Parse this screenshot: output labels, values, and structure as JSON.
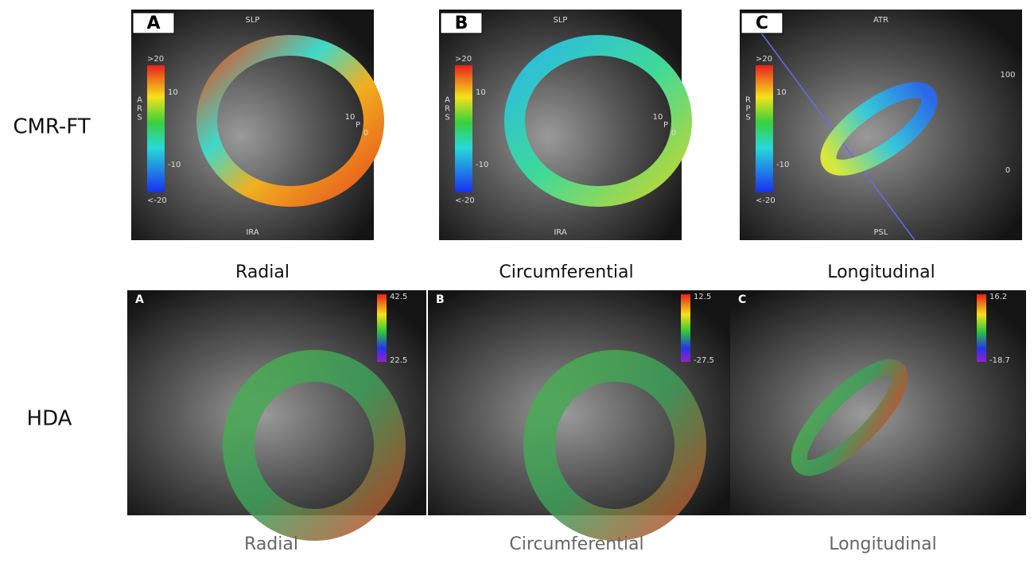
{
  "row_labels": [
    "CMR-FT",
    "HDA"
  ],
  "cmr_panels": [
    {
      "letter": "A",
      "top": "SLP",
      "bottom": "IRA",
      "scale_title": "ARS",
      "scale": [
        ">20",
        "10",
        "-10",
        "<-20"
      ],
      "side": [
        "10",
        "P",
        "0"
      ],
      "caption": "Radial"
    },
    {
      "letter": "B",
      "top": "SLP",
      "bottom": "IRA",
      "scale_title": "ARS",
      "scale": [
        ">20",
        "10",
        "-10",
        "<-20"
      ],
      "side": [
        "10",
        "P",
        "0"
      ],
      "caption": "Circumferential"
    },
    {
      "letter": "C",
      "top": "ATR",
      "bottom": "PSL",
      "scale_title": "RPS",
      "scale": [
        ">20",
        "10",
        "-10",
        "<-20"
      ],
      "side": [
        "100",
        "0"
      ],
      "caption": "Longitudinal"
    }
  ],
  "hda_panels": [
    {
      "letter": "A",
      "scale_max": "42.5",
      "scale_min": "22.5",
      "caption": "Radial"
    },
    {
      "letter": "B",
      "scale_max": "12.5",
      "scale_min": "-27.5",
      "caption": "Circumferential"
    },
    {
      "letter": "C",
      "scale_max": "16.2",
      "scale_min": "-18.7",
      "caption": "Longitudinal"
    }
  ]
}
